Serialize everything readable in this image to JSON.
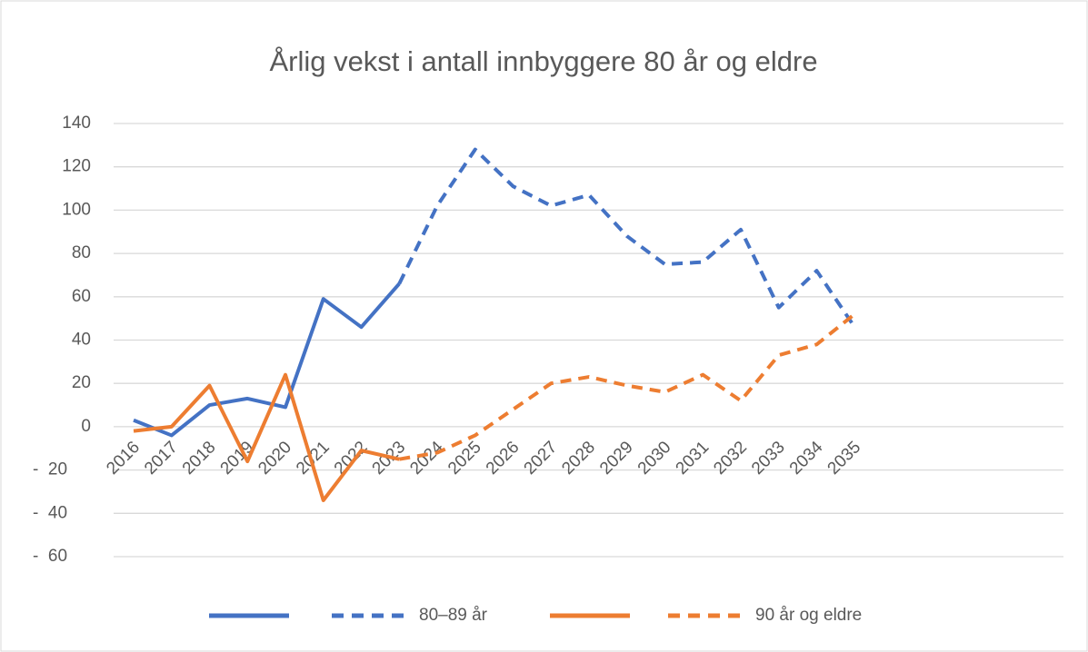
{
  "chart_data": {
    "type": "line",
    "title": "Årlig vekst i antall innbyggere 80 år og eldre",
    "categories": [
      "2016",
      "2017",
      "2018",
      "2019",
      "2020",
      "2021",
      "2022",
      "2023",
      "2024",
      "2025",
      "2026",
      "2027",
      "2028",
      "2029",
      "2030",
      "2031",
      "2032",
      "2033",
      "2034",
      "2035"
    ],
    "series": [
      {
        "color": "#4472c4",
        "dashed": false,
        "values": [
          3,
          -4,
          10,
          13,
          9,
          59,
          46,
          66,
          null,
          null,
          null,
          null,
          null,
          null,
          null,
          null,
          null,
          null,
          null,
          null
        ]
      },
      {
        "name": "80–89 år",
        "color": "#4472c4",
        "dashed": true,
        "values": [
          null,
          null,
          null,
          null,
          null,
          null,
          null,
          66,
          102,
          128,
          111,
          102,
          107,
          88,
          75,
          76,
          91,
          55,
          72,
          46
        ]
      },
      {
        "color": "#ed7d31",
        "dashed": false,
        "values": [
          -2,
          0,
          19,
          -16,
          24,
          -34,
          -11,
          -15,
          null,
          null,
          null,
          null,
          null,
          null,
          null,
          null,
          null,
          null,
          null,
          null
        ]
      },
      {
        "name": "90 år og eldre",
        "color": "#ed7d31",
        "dashed": true,
        "values": [
          null,
          null,
          null,
          null,
          null,
          null,
          null,
          -15,
          -12,
          -4,
          8,
          20,
          23,
          19,
          16,
          24,
          12,
          33,
          38,
          52
        ]
      }
    ],
    "ylim": [
      -60,
      140
    ],
    "yticks": [
      {
        "value": -60,
        "label": "-  60"
      },
      {
        "value": -40,
        "label": "-  40"
      },
      {
        "value": -20,
        "label": "-  20"
      },
      0,
      20,
      40,
      60,
      80,
      100,
      120,
      140
    ],
    "grid": true,
    "legend": "bottom"
  }
}
